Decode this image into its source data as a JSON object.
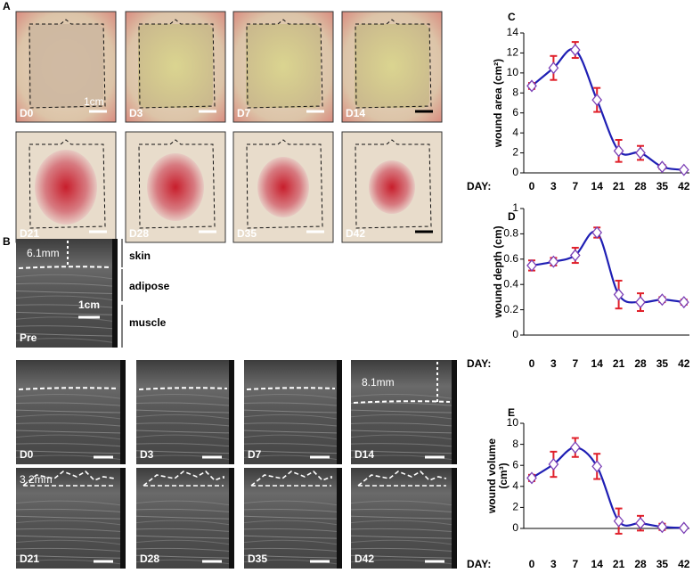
{
  "figure": {
    "panel_letters": [
      "A",
      "B",
      "C",
      "D",
      "E"
    ],
    "photos": [
      {
        "label": "D0",
        "scale": "1cm"
      },
      {
        "label": "D3"
      },
      {
        "label": "D7"
      },
      {
        "label": "D14"
      },
      {
        "label": "D21"
      },
      {
        "label": "D28"
      },
      {
        "label": "D35"
      },
      {
        "label": "D42"
      }
    ],
    "ultrasound_pre": {
      "label": "Pre",
      "depth": "6.1mm",
      "scale": "1cm",
      "layers": [
        "skin",
        "adipose",
        "muscle"
      ]
    },
    "ultrasound": [
      {
        "label": "D0"
      },
      {
        "label": "D3"
      },
      {
        "label": "D7"
      },
      {
        "label": "D14",
        "depth": "8.1mm"
      },
      {
        "label": "D21",
        "depth": "3.2mm"
      },
      {
        "label": "D28"
      },
      {
        "label": "D35"
      },
      {
        "label": "D42"
      }
    ]
  },
  "chart_data": [
    {
      "type": "line",
      "y_label": [
        "wound area (cm²)"
      ],
      "x_label": "DAY:",
      "categories": [
        "0",
        "3",
        "7",
        "14",
        "21",
        "28",
        "35",
        "42"
      ],
      "series": [
        {
          "color": "#1f1fb4",
          "marker_color": "#7b3fb5",
          "error_color": "#e0202a",
          "values": [
            8.7,
            10.5,
            12.3,
            7.3,
            2.2,
            2.0,
            0.6,
            0.3
          ],
          "errors": [
            0.3,
            1.2,
            0.8,
            1.2,
            1.1,
            0.7,
            0.2,
            0.1
          ]
        }
      ],
      "ylim": [
        0,
        14
      ],
      "yticks": [
        0,
        2,
        4,
        6,
        8,
        10,
        12,
        14
      ]
    },
    {
      "type": "line",
      "y_label": [
        "wound depth (cm)"
      ],
      "x_label": "DAY:",
      "categories": [
        "0",
        "3",
        "7",
        "14",
        "21",
        "28",
        "35",
        "42"
      ],
      "series": [
        {
          "color": "#1f1fb4",
          "marker_color": "#7b3fb5",
          "error_color": "#e0202a",
          "values": [
            0.55,
            0.58,
            0.63,
            0.81,
            0.32,
            0.26,
            0.28,
            0.26
          ],
          "errors": [
            0.04,
            0.03,
            0.06,
            0.04,
            0.11,
            0.07,
            0.02,
            0.02
          ]
        }
      ],
      "ylim": [
        0,
        1
      ],
      "yticks": [
        0,
        0.2,
        0.4,
        0.6,
        0.8,
        1
      ]
    },
    {
      "type": "line",
      "y_label": [
        "wound volume",
        "(cm³)"
      ],
      "x_label": "DAY:",
      "categories": [
        "0",
        "3",
        "7",
        "14",
        "21",
        "28",
        "35",
        "42"
      ],
      "series": [
        {
          "color": "#1f1fb4",
          "marker_color": "#7b3fb5",
          "error_color": "#e0202a",
          "values": [
            4.8,
            6.1,
            7.7,
            5.9,
            0.7,
            0.5,
            0.15,
            0.05
          ],
          "errors": [
            0.3,
            1.2,
            0.9,
            1.2,
            1.2,
            0.7,
            0.3,
            0.1
          ]
        }
      ],
      "ylim": [
        0,
        10
      ],
      "yticks": [
        0,
        2,
        4,
        6,
        8,
        10
      ]
    }
  ]
}
